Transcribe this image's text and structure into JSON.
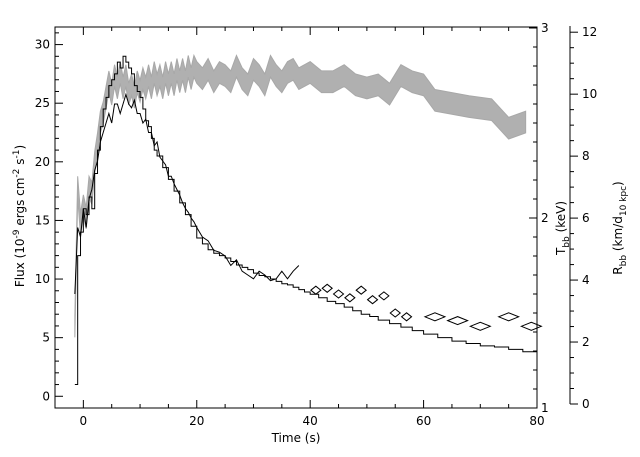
{
  "chart_data": {
    "type": "line",
    "xlabel": "Time (s)",
    "ylabel_left": {
      "main": "Flux (10",
      "sup1": "-9",
      "mid1": " ergs cm",
      "sup2": "-2",
      "mid2": " s",
      "sup3": "-1",
      "end": ")"
    },
    "ylabel_t": {
      "main": "T",
      "sub": "bb",
      "end": " (keV)"
    },
    "ylabel_r": {
      "main": "R",
      "sub": "bb",
      "mid": " (km/d",
      "sub2": "10 kpc",
      "end": ")"
    },
    "xlim": [
      -5,
      80
    ],
    "ylim_flux": [
      -1,
      31.5
    ],
    "ylim_t": [
      1,
      3
    ],
    "ylim_r": [
      0,
      12.2
    ],
    "xticks": [
      0,
      20,
      40,
      60,
      80
    ],
    "yticks_flux": [
      0,
      5,
      10,
      15,
      20,
      25,
      30
    ],
    "yticks_t": [
      1,
      2,
      3
    ],
    "yticks_r": [
      0,
      2,
      4,
      6,
      8,
      10,
      12
    ],
    "series": [
      {
        "kind": "flux-step",
        "x": [
          -1.5,
          -1,
          -0.5,
          0,
          0.5,
          1,
          1.5,
          2,
          2.5,
          3,
          3.5,
          4,
          4.5,
          5,
          5.5,
          6,
          6.5,
          7,
          7.5,
          8,
          8.5,
          9,
          9.5,
          10,
          10.5,
          11,
          11.5,
          12,
          12.5,
          13,
          14,
          15,
          16,
          17,
          18,
          19,
          20,
          21,
          22,
          23,
          24,
          25,
          26,
          27,
          28,
          29,
          30,
          31,
          32,
          33,
          34,
          35,
          36,
          37,
          38,
          39,
          40,
          41.5,
          43,
          44.5,
          46,
          47.5,
          49,
          50.5,
          52,
          54,
          56,
          58,
          60,
          62.5,
          65,
          67.5,
          70,
          72.5,
          75,
          77.5,
          80
        ],
        "y": [
          1,
          12,
          14,
          16,
          15.5,
          17,
          16,
          19,
          21,
          23,
          24.5,
          25.5,
          26.5,
          27,
          27.5,
          28.5,
          28,
          29,
          28.5,
          28,
          27.5,
          26.5,
          26,
          25.5,
          24.5,
          23.5,
          23,
          22,
          21,
          20.5,
          19.5,
          18.5,
          17.5,
          16.5,
          15.5,
          14.5,
          13.5,
          13,
          12.5,
          12.2,
          12,
          11.8,
          11.5,
          11.2,
          11,
          10.8,
          10.5,
          10.3,
          10.2,
          10,
          9.8,
          9.6,
          9.5,
          9.3,
          9.1,
          8.9,
          8.7,
          8.4,
          8.1,
          7.9,
          7.6,
          7.3,
          7.0,
          6.8,
          6.5,
          6.2,
          5.9,
          5.6,
          5.3,
          5.0,
          4.7,
          4.5,
          4.3,
          4.2,
          4.0,
          3.8,
          3.6
        ]
      },
      {
        "kind": "temperature",
        "x": [
          -1.5,
          -1,
          -0.5,
          0,
          0.5,
          1,
          1.5,
          2,
          2.5,
          3,
          3.5,
          4,
          4.5,
          5,
          5.5,
          6,
          6.5,
          7,
          7.5,
          8,
          8.5,
          9,
          9.5,
          10,
          10.5,
          11,
          11.5,
          12,
          12.5,
          13,
          13.5,
          14,
          14.5,
          15,
          15.5,
          16,
          16.5,
          17,
          17.5,
          18,
          18.5,
          19,
          19.5,
          20,
          21,
          22,
          23,
          24,
          25,
          26,
          27,
          28,
          29,
          30,
          31,
          32,
          33,
          34,
          35,
          36,
          37,
          38
        ],
        "y": [
          1.6,
          1.95,
          1.9,
          2.05,
          1.95,
          2.1,
          2.15,
          2.25,
          2.3,
          2.4,
          2.45,
          2.5,
          2.55,
          2.5,
          2.6,
          2.6,
          2.55,
          2.6,
          2.65,
          2.6,
          2.58,
          2.62,
          2.55,
          2.55,
          2.5,
          2.52,
          2.45,
          2.45,
          2.38,
          2.4,
          2.32,
          2.3,
          2.28,
          2.22,
          2.22,
          2.18,
          2.15,
          2.12,
          2.08,
          2.05,
          2.03,
          2.0,
          1.98,
          1.95,
          1.9,
          1.88,
          1.83,
          1.82,
          1.8,
          1.75,
          1.78,
          1.72,
          1.7,
          1.68,
          1.72,
          1.7,
          1.67,
          1.68,
          1.72,
          1.68,
          1.72,
          1.75
        ]
      },
      {
        "kind": "temperature-diamonds",
        "x": [
          41,
          43,
          45,
          47,
          49,
          51,
          53,
          55,
          57,
          62,
          66,
          70,
          75,
          79
        ],
        "y": [
          1.62,
          1.63,
          1.6,
          1.58,
          1.62,
          1.57,
          1.59,
          1.5,
          1.48,
          1.48,
          1.46,
          1.43,
          1.48,
          1.43
        ]
      },
      {
        "kind": "radius-band",
        "x": [
          -1.5,
          -1,
          -0.5,
          0,
          0.5,
          1,
          1.5,
          2,
          2.5,
          3,
          3.5,
          4,
          4.5,
          5,
          5.5,
          6,
          6.5,
          7,
          7.5,
          8,
          8.5,
          9,
          9.5,
          10,
          10.5,
          11,
          11.5,
          12,
          12.5,
          13,
          13.5,
          14,
          14.5,
          15,
          15.5,
          16,
          16.5,
          17,
          17.5,
          18,
          18.5,
          19,
          19.5,
          20,
          21,
          22,
          23,
          24,
          25,
          26,
          27,
          28,
          29,
          30,
          31,
          32,
          33,
          34,
          35,
          36,
          37,
          38,
          40,
          42,
          44,
          46,
          48,
          50,
          52,
          54,
          56,
          58,
          60,
          62,
          65,
          68,
          72,
          75,
          78
        ],
        "y": [
          2.5,
          7.0,
          5.8,
          6.4,
          6.0,
          7.0,
          6.8,
          7.8,
          8.4,
          9.1,
          9.4,
          9.9,
          10.4,
          10.0,
          10.6,
          10.2,
          10.7,
          10.2,
          10.6,
          10.0,
          10.3,
          9.9,
          10.4,
          10.1,
          10.5,
          10.2,
          10.6,
          10.2,
          10.7,
          10.3,
          10.6,
          10.2,
          10.7,
          10.3,
          10.7,
          10.3,
          10.8,
          10.4,
          10.8,
          10.4,
          10.9,
          10.5,
          10.9,
          10.7,
          10.5,
          10.8,
          10.4,
          10.7,
          10.6,
          10.4,
          10.9,
          10.5,
          10.3,
          10.8,
          10.6,
          10.3,
          10.9,
          10.6,
          10.4,
          10.7,
          10.8,
          10.5,
          10.7,
          10.4,
          10.4,
          10.6,
          10.3,
          10.2,
          10.3,
          10.0,
          10.6,
          10.4,
          10.3,
          9.8,
          9.7,
          9.6,
          9.5,
          8.9,
          9.1
        ]
      }
    ]
  }
}
